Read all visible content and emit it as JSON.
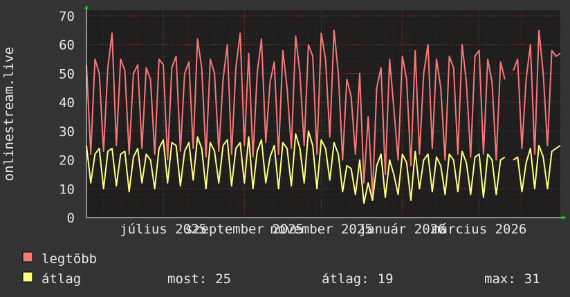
{
  "chart_data": {
    "type": "line",
    "y_label": "onlinestream.live",
    "categories": [
      null,
      null,
      null,
      null,
      null,
      null,
      null,
      null,
      null,
      null,
      null,
      null,
      null,
      null,
      null,
      null,
      null,
      null,
      "július 2025",
      null,
      null,
      null,
      null,
      null,
      null,
      null,
      null,
      null,
      null,
      null,
      null,
      null,
      null,
      null,
      null,
      null,
      null,
      "szeptember 2025",
      null,
      null,
      null,
      null,
      null,
      null,
      null,
      null,
      null,
      null,
      null,
      null,
      null,
      null,
      null,
      null,
      null,
      "november 2025",
      null,
      null,
      null,
      null,
      null,
      null,
      null,
      null,
      null,
      null,
      null,
      null,
      null,
      null,
      null,
      null,
      null,
      null,
      "január 2026",
      null,
      null,
      null,
      null,
      null,
      null,
      null,
      null,
      null,
      null,
      null,
      null,
      null,
      null,
      null,
      null,
      null,
      "március 2026",
      null,
      null,
      null,
      null,
      null,
      null,
      null,
      null,
      null,
      null,
      null,
      null,
      null,
      null,
      null,
      null,
      null,
      null,
      null
    ],
    "series": [
      {
        "name": "legtöbb",
        "color": "#f87878",
        "values": [
          53,
          22,
          55,
          50,
          23,
          52,
          64,
          25,
          55,
          51,
          22,
          50,
          53,
          24,
          52,
          48,
          22,
          55,
          53,
          20,
          52,
          56,
          23,
          50,
          54,
          24,
          62,
          52,
          21,
          55,
          50,
          23,
          48,
          60,
          22,
          52,
          64,
          25,
          57,
          21,
          50,
          62,
          26,
          47,
          54,
          22,
          58,
          45,
          24,
          63,
          50,
          25,
          60,
          56,
          22,
          64,
          55,
          28,
          65,
          50,
          20,
          48,
          42,
          22,
          50,
          12,
          35,
          8,
          45,
          52,
          15,
          55,
          38,
          20,
          56,
          48,
          18,
          58,
          22,
          50,
          60,
          24,
          55,
          45,
          20,
          56,
          52,
          22,
          60,
          47,
          21,
          56,
          58,
          22,
          55,
          47,
          20,
          54,
          48,
          null,
          51,
          55,
          24,
          48,
          60,
          22,
          65,
          50,
          25,
          58,
          56,
          57
        ]
      },
      {
        "name": "átlag",
        "color": "#ffff80",
        "values": [
          25,
          12,
          22,
          24,
          10,
          23,
          24,
          11,
          22,
          23,
          9,
          21,
          24,
          12,
          22,
          20,
          10,
          24,
          27,
          12,
          26,
          25,
          11,
          23,
          26,
          13,
          28,
          24,
          10,
          26,
          23,
          12,
          25,
          27,
          11,
          24,
          26,
          12,
          28,
          10,
          23,
          27,
          12,
          21,
          25,
          10,
          26,
          24,
          11,
          29,
          24,
          12,
          30,
          25,
          10,
          27,
          24,
          13,
          26,
          22,
          9,
          18,
          17,
          8,
          20,
          5,
          12,
          6,
          18,
          22,
          7,
          20,
          15,
          8,
          22,
          19,
          6,
          23,
          10,
          20,
          22,
          9,
          21,
          18,
          8,
          22,
          20,
          9,
          23,
          19,
          8,
          21,
          22,
          7,
          22,
          20,
          8,
          20,
          21,
          null,
          20,
          21,
          9,
          19,
          24,
          10,
          25,
          21,
          10,
          23,
          24,
          25
        ]
      }
    ],
    "ylim": [
      0,
      70
    ],
    "yticks": [
      0,
      10,
      20,
      30,
      40,
      50,
      60,
      70
    ],
    "grid": true,
    "stats": [
      {
        "label": "most:",
        "value": 25
      },
      {
        "label": "átlag:",
        "value": 19
      },
      {
        "label": "max:",
        "value": 31
      }
    ]
  }
}
